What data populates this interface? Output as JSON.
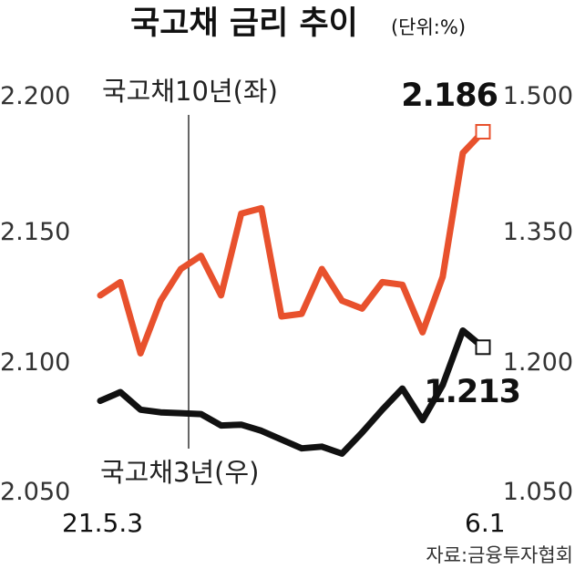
{
  "title": "국고채 금리 추이",
  "unit": "(단위:%)",
  "source": "자료:금융투자협회",
  "colors": {
    "ten_year": "#e8512d",
    "three_year": "#111111",
    "tick": "#333333"
  },
  "chart_data": {
    "type": "line",
    "title": "국고채 금리 추이",
    "x_labels": [
      "21.5.3",
      "6.1"
    ],
    "left_axis": {
      "ylim": [
        2.05,
        2.2
      ],
      "ticks": [
        "2.200",
        "2.150",
        "2.100",
        "2.050"
      ]
    },
    "right_axis": {
      "ylim": [
        1.05,
        1.5
      ],
      "ticks": [
        "1.500",
        "1.350",
        "1.200",
        "1.050"
      ]
    },
    "grid": false,
    "series": [
      {
        "name": "국고채10년(좌)",
        "axis": "left",
        "end_label": "2.186",
        "values": [
          2.124,
          2.129,
          2.102,
          2.122,
          2.134,
          2.139,
          2.124,
          2.155,
          2.157,
          2.116,
          2.117,
          2.134,
          2.122,
          2.119,
          2.129,
          2.128,
          2.11,
          2.131,
          2.178,
          2.186
        ]
      },
      {
        "name": "국고채3년(우)",
        "axis": "right",
        "end_label": "1.213",
        "values": [
          1.152,
          1.162,
          1.142,
          1.139,
          1.138,
          1.137,
          1.124,
          1.125,
          1.118,
          1.108,
          1.098,
          1.1,
          1.092,
          1.116,
          1.142,
          1.166,
          1.13,
          1.17,
          1.232,
          1.213
        ]
      }
    ]
  }
}
